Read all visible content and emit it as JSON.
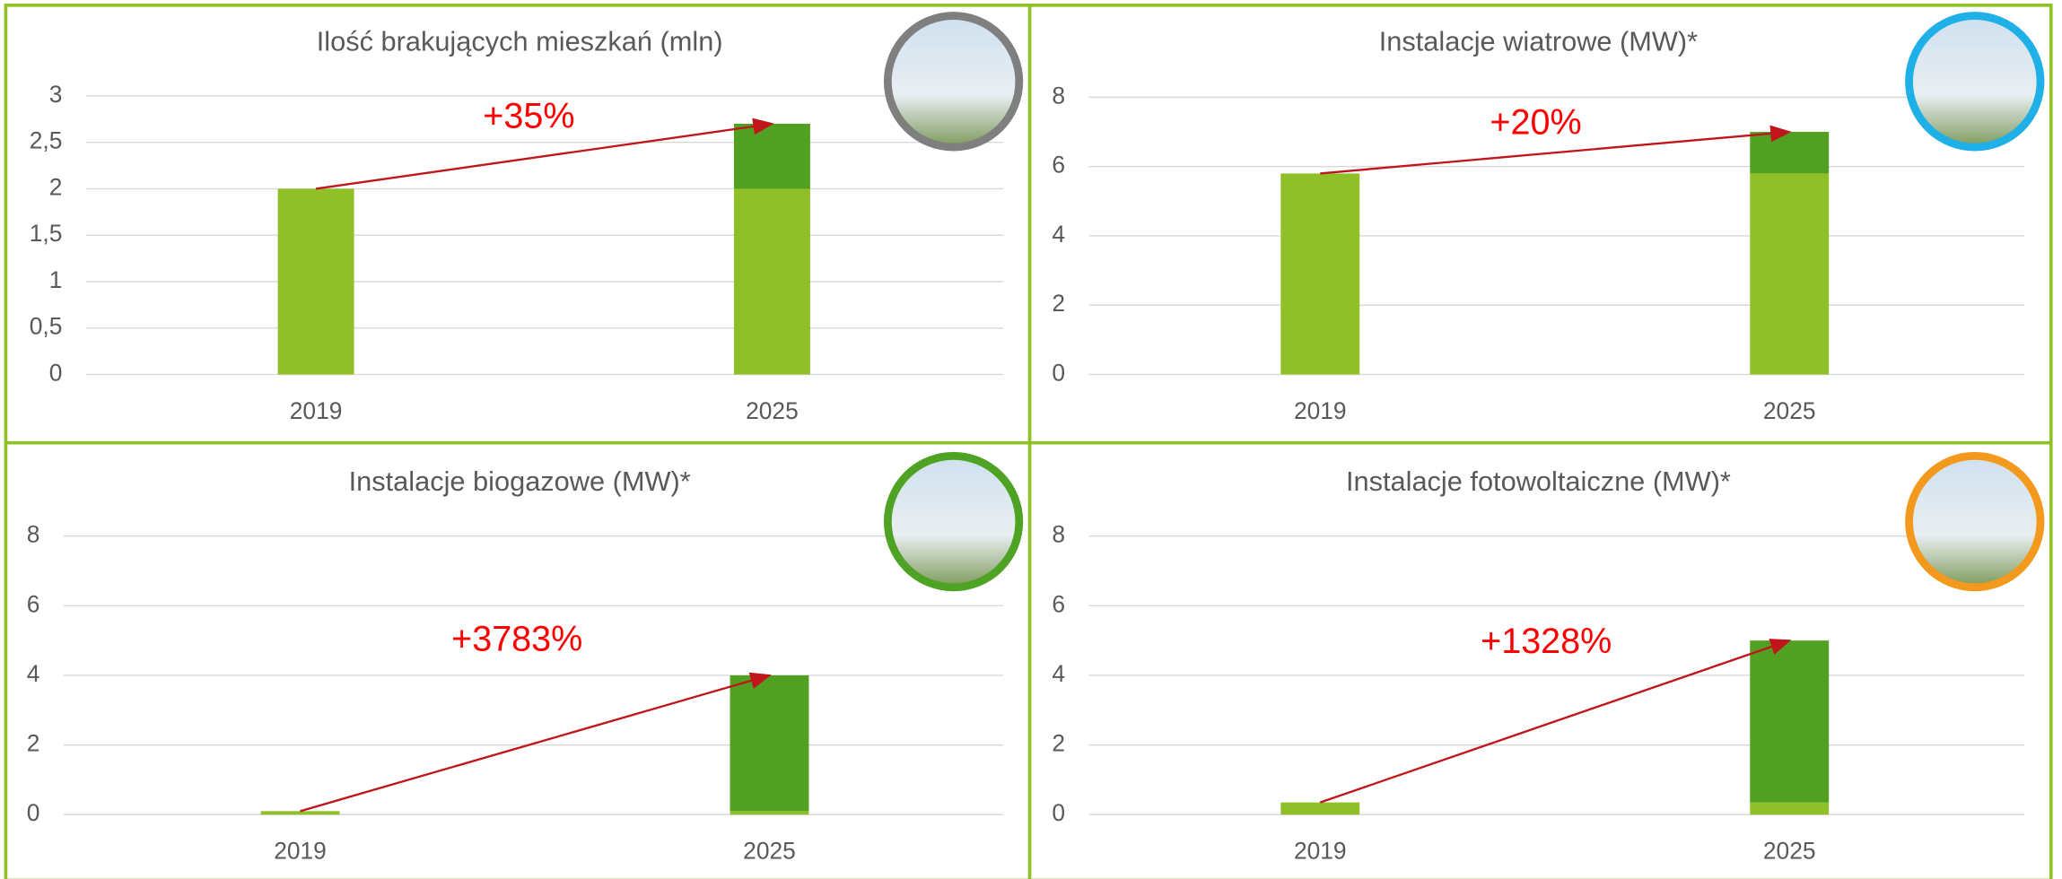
{
  "chart_data": [
    {
      "type": "stacked_bar",
      "title": "Ilość brakujących mieszkań (mln)",
      "annotation": "+35%",
      "categories": [
        "2019",
        "2025"
      ],
      "series": [
        {
          "color": "#8fc027",
          "values": [
            2,
            2
          ]
        },
        {
          "color": "#52a021",
          "values": [
            null,
            0.7
          ]
        }
      ],
      "ylim": [
        0,
        3
      ],
      "yticks": [
        0,
        {
          "value": 0.5,
          "label": "0,5"
        },
        1,
        {
          "value": 1.5,
          "label": "1,5"
        },
        2,
        {
          "value": 2.5,
          "label": "2,5"
        },
        3
      ],
      "grid": true,
      "badge_color": "#7f7f7f"
    },
    {
      "type": "stacked_bar",
      "title": "Instalacje wiatrowe (MW)*",
      "annotation": "+20%",
      "categories": [
        "2019",
        "2025"
      ],
      "series": [
        {
          "color": "#8fc027",
          "values": [
            5.8,
            5.8
          ]
        },
        {
          "color": "#52a021",
          "values": [
            null,
            1.2
          ]
        }
      ],
      "ylim": [
        0,
        8
      ],
      "yticks": [
        0,
        2,
        4,
        6,
        8
      ],
      "grid": true,
      "badge_color": "#1fb0e8"
    },
    {
      "type": "stacked_bar",
      "title": "Instalacje biogazowe (MW)*",
      "annotation": "+3783%",
      "categories": [
        "2019",
        "2025"
      ],
      "series": [
        {
          "color": "#8fc027",
          "values": [
            0.1,
            0.1
          ]
        },
        {
          "color": "#52a021",
          "values": [
            null,
            3.9
          ]
        }
      ],
      "ylim": [
        0,
        8
      ],
      "yticks": [
        0,
        2,
        4,
        6,
        8
      ],
      "grid": true,
      "badge_color": "#4fa324"
    },
    {
      "type": "stacked_bar",
      "title": "Instalacje fotowoltaiczne (MW)*",
      "annotation": "+1328%",
      "categories": [
        "2019",
        "2025"
      ],
      "series": [
        {
          "color": "#8fc027",
          "values": [
            0.35,
            0.35
          ]
        },
        {
          "color": "#52a021",
          "values": [
            null,
            4.65
          ]
        }
      ],
      "ylim": [
        0,
        8
      ],
      "yticks": [
        0,
        2,
        4,
        6,
        8
      ],
      "grid": true,
      "badge_color": "#f39a1e"
    }
  ]
}
